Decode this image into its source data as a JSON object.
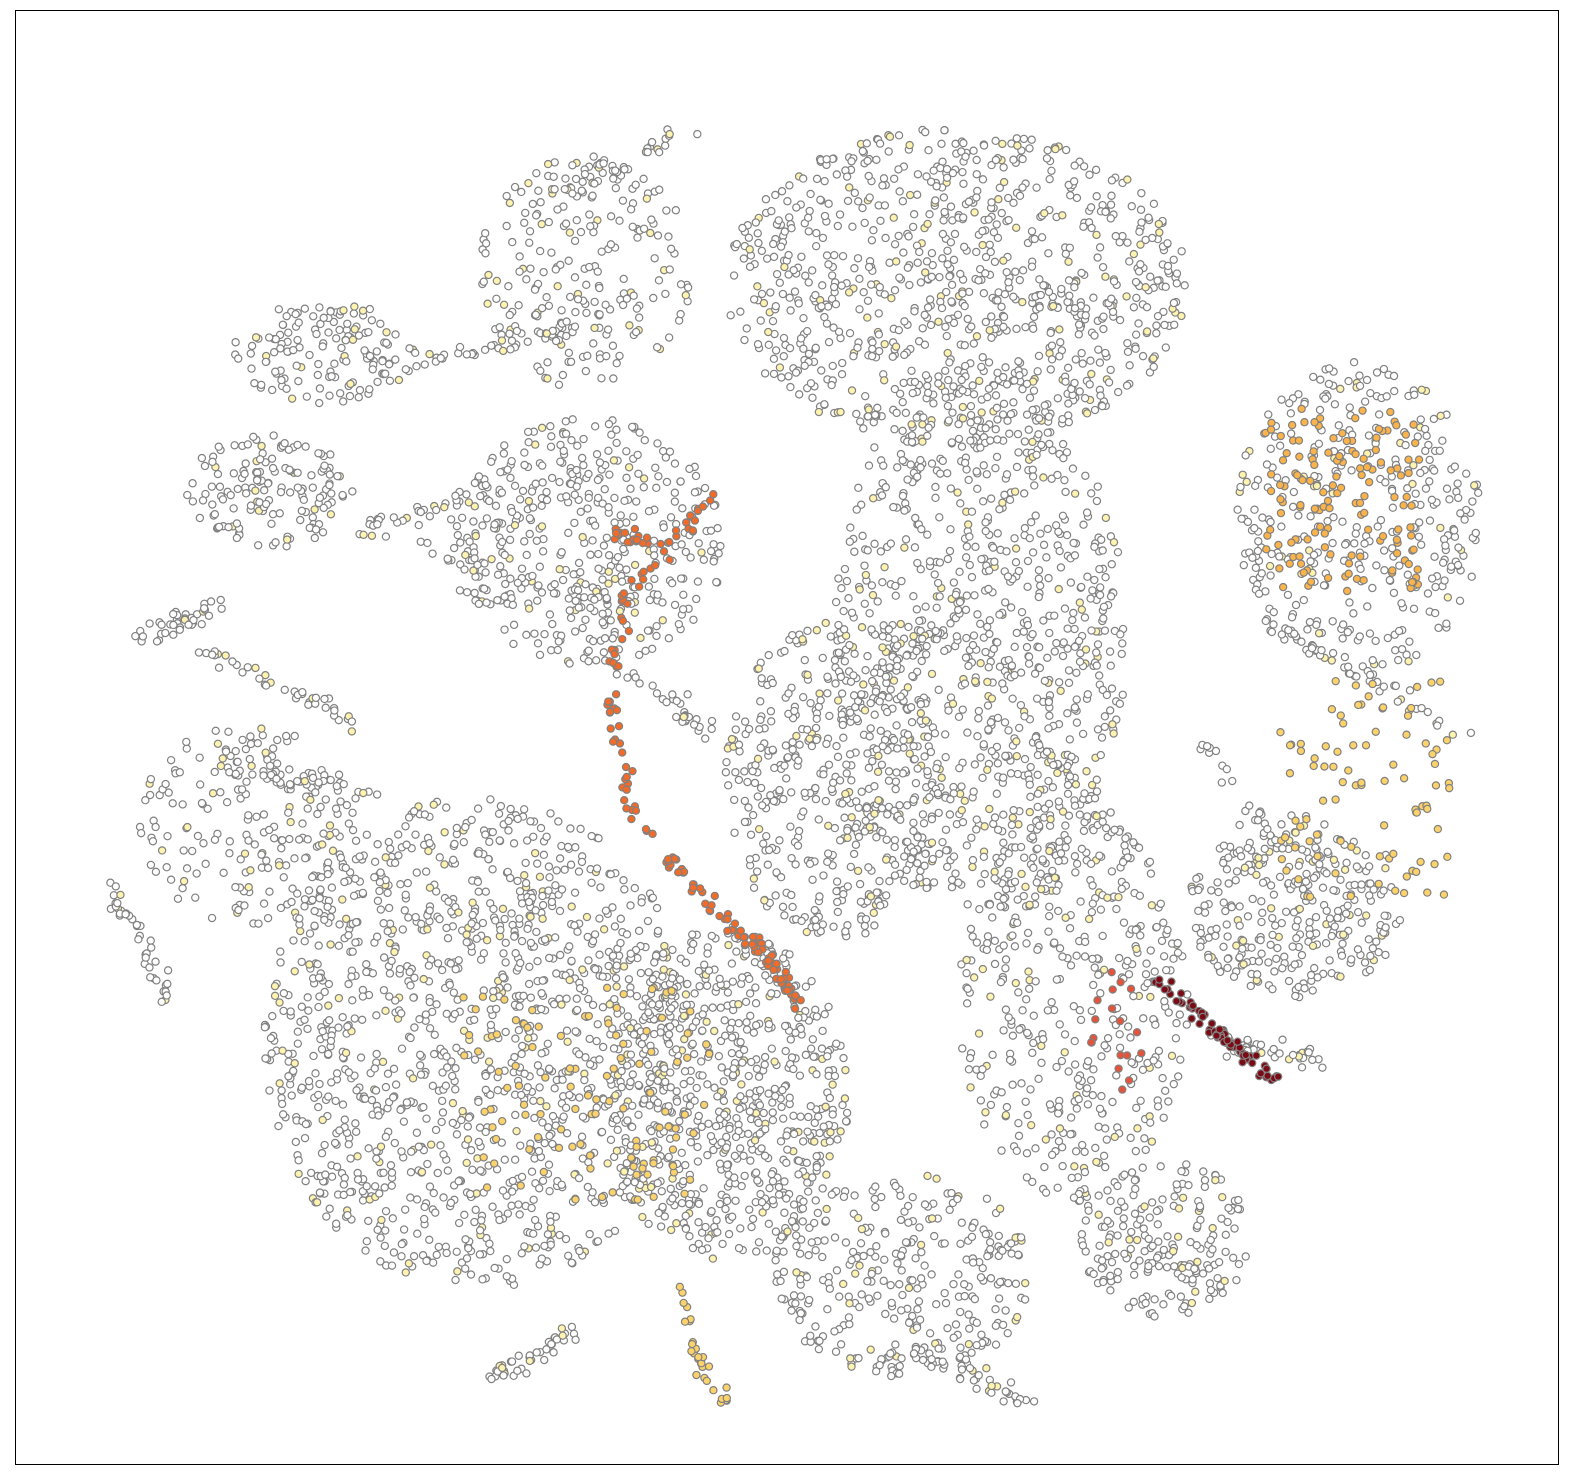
{
  "chart_data": {
    "type": "scatter",
    "title": "",
    "xlabel": "",
    "ylabel": "",
    "axes_visible": false,
    "grid": false,
    "legend": "none",
    "xlim": [
      0,
      100
    ],
    "ylim": [
      0,
      100
    ],
    "colors": {
      "marker_edge": "#808080",
      "low": "#ffffff",
      "pale": "#fff3b0",
      "yellow": "#fcd36a",
      "orange": "#fc9a3a",
      "dark_orange": "#f26b28",
      "red": "#d62a2a",
      "dark_red": "#7a0a14"
    },
    "seed": 20240521,
    "regions": [
      {
        "name": "top-cap",
        "x": [
          46,
          76
        ],
        "y": [
          70,
          92
        ],
        "density": 1.0,
        "count": 900,
        "shape": "ellipse"
      },
      {
        "name": "top-left-arm",
        "x": [
          30,
          44
        ],
        "y": [
          74,
          90
        ],
        "density": 0.8,
        "count": 220,
        "shape": "ellipse"
      },
      {
        "name": "top-left-blob",
        "x": [
          14,
          26
        ],
        "y": [
          73,
          80
        ],
        "density": 0.7,
        "count": 140,
        "shape": "ellipse"
      },
      {
        "name": "left-upper-blob",
        "x": [
          11,
          22
        ],
        "y": [
          63,
          71
        ],
        "density": 0.7,
        "count": 150,
        "shape": "ellipse"
      },
      {
        "name": "left-mid-blob",
        "x": [
          8,
          22
        ],
        "y": [
          37,
          51
        ],
        "density": 0.6,
        "count": 200,
        "shape": "ellipse"
      },
      {
        "name": "center-upper",
        "x": [
          28,
          46
        ],
        "y": [
          55,
          72
        ],
        "density": 0.9,
        "count": 420,
        "shape": "ellipse"
      },
      {
        "name": "center-column",
        "x": [
          53,
          72
        ],
        "y": [
          38,
          76
        ],
        "density": 1.0,
        "count": 900,
        "shape": "ellipse"
      },
      {
        "name": "mid-lobes",
        "x": [
          46,
          60
        ],
        "y": [
          36,
          58
        ],
        "density": 0.9,
        "count": 420,
        "shape": "ellipse"
      },
      {
        "name": "lower-left-mass",
        "x": [
          16,
          44
        ],
        "y": [
          12,
          46
        ],
        "density": 1.0,
        "count": 1300,
        "shape": "ellipse"
      },
      {
        "name": "lower-center-mass",
        "x": [
          38,
          54
        ],
        "y": [
          14,
          37
        ],
        "density": 1.0,
        "count": 650,
        "shape": "ellipse"
      },
      {
        "name": "right-lower-arm",
        "x": [
          61,
          76
        ],
        "y": [
          18,
          45
        ],
        "density": 0.8,
        "count": 420,
        "shape": "ellipse"
      },
      {
        "name": "right-wing",
        "x": [
          76,
          90
        ],
        "y": [
          32,
          45
        ],
        "density": 0.8,
        "count": 300,
        "shape": "ellipse"
      },
      {
        "name": "bottom-center",
        "x": [
          49,
          66
        ],
        "y": [
          6,
          20
        ],
        "density": 0.7,
        "count": 320,
        "shape": "ellipse"
      },
      {
        "name": "bottom-right",
        "x": [
          69,
          80
        ],
        "y": [
          10,
          21
        ],
        "density": 0.7,
        "count": 200,
        "shape": "ellipse"
      },
      {
        "name": "right-lobe-head",
        "x": [
          79,
          95
        ],
        "y": [
          54,
          76
        ],
        "density": 0.8,
        "count": 360,
        "shape": "ellipse"
      }
    ],
    "highlight_series": [
      {
        "name": "dark-red-streak",
        "x": [
          74.0,
          81.9
        ],
        "y": [
          33.4,
          26.0
        ],
        "color": "#7a0a14",
        "count": 70
      },
      {
        "name": "orange-trail",
        "x": [
          45.5,
          39.4,
          38.5,
          40.0,
          44.8,
          48.7,
          50.5
        ],
        "y": [
          67.0,
          59.5,
          52.0,
          45.0,
          38.5,
          35.0,
          32.0
        ],
        "color": "#f26b28",
        "count": 160
      },
      {
        "name": "orange-spur",
        "x": [
          38.6,
          40.9
        ],
        "y": [
          64.3,
          63.4
        ],
        "color": "#f26b28",
        "count": 20
      },
      {
        "name": "right-lobe-gold",
        "x": [
          81,
          91
        ],
        "y": [
          60,
          73
        ],
        "color": "#fcb44a",
        "count": 140
      },
      {
        "name": "right-wing-gold",
        "x": [
          82,
          93
        ],
        "y": [
          39,
          54
        ],
        "color": "#fcd36a",
        "count": 90
      },
      {
        "name": "bottom-hook",
        "x": [
          43.3,
          44.2,
          45.9
        ],
        "y": [
          12.3,
          7.0,
          4.5
        ],
        "color": "#fcd36a",
        "count": 30
      },
      {
        "name": "lower-left-gold",
        "x": [
          29,
          45
        ],
        "y": [
          18,
          33
        ],
        "color": "#fcd36a",
        "count": 110
      },
      {
        "name": "red-cluster",
        "x": [
          69.5,
          73.0
        ],
        "y": [
          25.0,
          34.0
        ],
        "color": "#e5543a",
        "count": 18
      }
    ]
  }
}
